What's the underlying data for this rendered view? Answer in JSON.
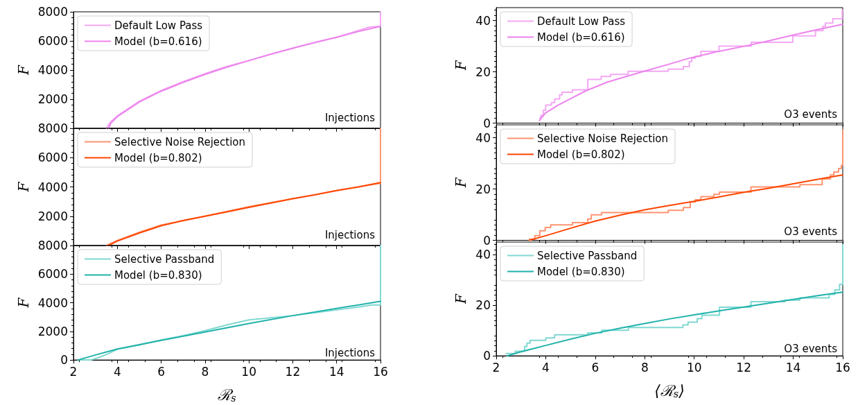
{
  "chart_data": [
    {
      "type": "line",
      "xlim": [
        2,
        16
      ],
      "xticks": [
        2,
        4,
        6,
        8,
        10,
        12,
        14,
        16
      ],
      "ylim": [
        0,
        8000
      ],
      "yticks": [
        2000,
        4000,
        6000,
        8000
      ],
      "ylabel": "F",
      "tick_labels": "y",
      "legend": "top left",
      "grid": false,
      "line_style": "solid",
      "annotations": [
        "Injections"
      ],
      "series": [
        {
          "name": "Default Low Pass",
          "type": "line",
          "color": "#f3a8f3",
          "x": [
            3.5,
            3.6,
            3.7,
            4,
            5,
            6,
            7,
            8,
            9,
            10,
            12,
            14,
            15.5,
            16,
            16
          ],
          "values": [
            0,
            250,
            450,
            850,
            1850,
            2600,
            3200,
            3750,
            4250,
            4650,
            5500,
            6250,
            6950,
            7000,
            8000
          ]
        },
        {
          "name": "Model (b=0.616)",
          "type": "line",
          "color": "#ee82ee",
          "x": [
            3.6,
            3.7,
            3.8,
            4,
            4.5,
            5,
            6,
            7,
            8,
            9,
            10,
            11,
            12,
            13,
            14,
            15,
            16
          ],
          "values": [
            0,
            350,
            500,
            800,
            1300,
            1800,
            2550,
            3150,
            3700,
            4200,
            4650,
            5100,
            5500,
            5900,
            6250,
            6650,
            7000
          ]
        }
      ]
    },
    {
      "type": "line",
      "xlim": [
        2,
        16
      ],
      "xticks": [
        2,
        4,
        6,
        8,
        10,
        12,
        14,
        16
      ],
      "ylim": [
        0,
        45
      ],
      "yticks": [
        0,
        20,
        40
      ],
      "ylabel": "F",
      "tick_labels": "y",
      "legend": "top left",
      "grid": false,
      "line_style": "solid",
      "annotations": [
        "O3 events"
      ],
      "series": [
        {
          "name": "Default Low Pass",
          "type": "step",
          "color": "#f3a8f3",
          "x": [
            3.76,
            3.8,
            3.9,
            4.0,
            4.23,
            4.36,
            4.56,
            4.66,
            5.08,
            5.7,
            6.24,
            6.62,
            7.33,
            8.95,
            9.56,
            9.8,
            9.9,
            10.04,
            10.27,
            11.0,
            12.3,
            13.98,
            14.9,
            15.2,
            15.3,
            15.6,
            15.98,
            16
          ],
          "values": [
            2,
            3,
            5,
            7,
            8,
            9.4,
            11,
            12,
            13,
            17,
            18.2,
            19,
            20.2,
            21,
            22,
            24,
            25.3,
            26,
            28,
            30,
            31.5,
            34,
            36,
            37.8,
            39,
            40.7,
            44,
            44
          ]
        },
        {
          "name": "Model (b=0.616)",
          "type": "line",
          "color": "#ee82ee",
          "x": [
            3.74,
            4,
            4.5,
            5,
            5.6,
            6.5,
            7.9,
            9,
            9.8,
            11,
            12.2,
            13,
            14,
            15,
            16
          ],
          "values": [
            1,
            4,
            7,
            9.5,
            12.5,
            16,
            20,
            23,
            25.3,
            28,
            30.3,
            32,
            34.3,
            36.5,
            38.5
          ]
        }
      ]
    },
    {
      "type": "line",
      "xlim": [
        2,
        16
      ],
      "xticks": [
        2,
        4,
        6,
        8,
        10,
        12,
        14,
        16
      ],
      "ylim": [
        0,
        8000
      ],
      "yticks": [
        2000,
        4000,
        6000,
        8000
      ],
      "ylabel": "F",
      "tick_labels": "y",
      "legend": "top left",
      "grid": false,
      "line_style": "solid",
      "annotations": [
        "Injections"
      ],
      "series": [
        {
          "name": "Selective Noise Rejection",
          "type": "line",
          "color": "#ff9470",
          "x": [
            3.5,
            4,
            5,
            6,
            8,
            10,
            12,
            14,
            15.6,
            16,
            16
          ],
          "values": [
            0,
            350,
            900,
            1400,
            2000,
            2650,
            3200,
            3750,
            4150,
            4250,
            8000
          ]
        },
        {
          "name": "Model (b=0.802)",
          "type": "line",
          "color": "#ff4500",
          "x": [
            3.6,
            3.8,
            4,
            5,
            6,
            7,
            8,
            9,
            10,
            11,
            12,
            13,
            14,
            15,
            16
          ],
          "values": [
            0,
            150,
            300,
            850,
            1350,
            1700,
            2000,
            2300,
            2600,
            2900,
            3200,
            3450,
            3750,
            4000,
            4300
          ]
        }
      ]
    },
    {
      "type": "line",
      "xlim": [
        2,
        16
      ],
      "xticks": [
        2,
        4,
        6,
        8,
        10,
        12,
        14,
        16
      ],
      "ylim": [
        0,
        45
      ],
      "yticks": [
        0,
        20,
        40
      ],
      "ylabel": "F",
      "tick_labels": "y",
      "legend": "top left",
      "grid": false,
      "line_style": "solid",
      "annotations": [
        "O3 events"
      ],
      "series": [
        {
          "name": "Selective Noise Rejection",
          "type": "step",
          "color": "#ff9470",
          "x": [
            3.34,
            3.56,
            3.76,
            3.98,
            4.2,
            5.08,
            5.7,
            5.84,
            6.26,
            8.95,
            9.56,
            9.84,
            10.04,
            10.27,
            10.79,
            11.02,
            12.29,
            14.27,
            15.17,
            15.5,
            15.64,
            15.83,
            15.94,
            16
          ],
          "values": [
            0.5,
            1.8,
            3.7,
            5,
            6,
            6.9,
            8.3,
            9.9,
            10.8,
            11.7,
            12.8,
            14.9,
            15.8,
            17,
            17.9,
            18.8,
            20.8,
            21.7,
            23.9,
            25.5,
            26.6,
            28,
            29.2,
            43
          ]
        },
        {
          "name": "Model (b=0.802)",
          "type": "line",
          "color": "#ff4500",
          "x": [
            3.34,
            4,
            5,
            6,
            7,
            8,
            9,
            10,
            11,
            12,
            13,
            14,
            15,
            16
          ],
          "values": [
            0,
            1.8,
            4.7,
            7.5,
            9.8,
            11.9,
            13.6,
            15.2,
            16.9,
            18.7,
            20.3,
            22,
            23.8,
            25.5
          ]
        }
      ]
    },
    {
      "type": "line",
      "xlim": [
        2,
        16
      ],
      "xticks": [
        2,
        4,
        6,
        8,
        10,
        12,
        14,
        16
      ],
      "ylim": [
        0,
        8000
      ],
      "yticks": [
        0,
        2000,
        4000,
        6000,
        8000
      ],
      "ylabel": "F",
      "xlabel": "ℛ$_{s}$",
      "legend": "top left",
      "grid": false,
      "line_style": "solid",
      "annotations": [
        "Injections"
      ],
      "series": [
        {
          "name": "Selective Passband",
          "type": "line",
          "color": "#80d8d2",
          "x": [
            2.3,
            2.8,
            3.2,
            3.6,
            4,
            5,
            6,
            7,
            8,
            9,
            10,
            11,
            12,
            13,
            14,
            15,
            15.6,
            16,
            16
          ],
          "values": [
            0,
            0,
            200,
            450,
            750,
            1050,
            1400,
            1700,
            2050,
            2450,
            2800,
            2950,
            3100,
            3300,
            3500,
            3700,
            3850,
            3850,
            8000
          ]
        },
        {
          "name": "Model (b=0.830)",
          "type": "line",
          "color": "#20b2aa",
          "x": [
            2.2,
            3,
            4,
            6,
            8,
            10,
            12,
            14,
            16
          ],
          "values": [
            0,
            350,
            770,
            1370,
            1950,
            2550,
            3100,
            3600,
            4100
          ]
        }
      ]
    },
    {
      "type": "line",
      "xlim": [
        2,
        16
      ],
      "xticks": [
        2,
        4,
        6,
        8,
        10,
        12,
        14,
        16
      ],
      "ylim": [
        0,
        45
      ],
      "yticks": [
        0,
        20,
        40
      ],
      "ylabel": "F",
      "xlabel": "⟨ℛ$_{s}$⟩",
      "legend": "top left",
      "grid": false,
      "line_style": "solid",
      "annotations": [
        "O3 events"
      ],
      "series": [
        {
          "name": "Selective Passband",
          "type": "step",
          "color": "#80d8d2",
          "x": [
            2.4,
            2.77,
            3.15,
            3.24,
            3.37,
            4,
            4.36,
            5.7,
            6.26,
            7.34,
            9.54,
            9.75,
            10.12,
            10.31,
            11.02,
            12.29,
            13.66,
            14.27,
            15.45,
            15.68,
            15.87,
            16
          ],
          "values": [
            0.9,
            1.8,
            3.7,
            5,
            6.1,
            7.1,
            8.3,
            9.1,
            10.1,
            11.2,
            12.2,
            13.3,
            14.7,
            16.1,
            19.2,
            21.4,
            22,
            22.9,
            24.3,
            26.1,
            28.3,
            44
          ]
        },
        {
          "name": "Model (b=0.830)",
          "type": "line",
          "color": "#20b2aa",
          "x": [
            2.44,
            3,
            4,
            5,
            6,
            7,
            8,
            9,
            10,
            11,
            12,
            13,
            14,
            15,
            16
          ],
          "values": [
            0,
            1.6,
            4.1,
            6.6,
            8.9,
            10.9,
            12.8,
            14.6,
            16.2,
            17.8,
            19.3,
            20.8,
            22.3,
            23.8,
            25.2
          ]
        }
      ]
    }
  ]
}
